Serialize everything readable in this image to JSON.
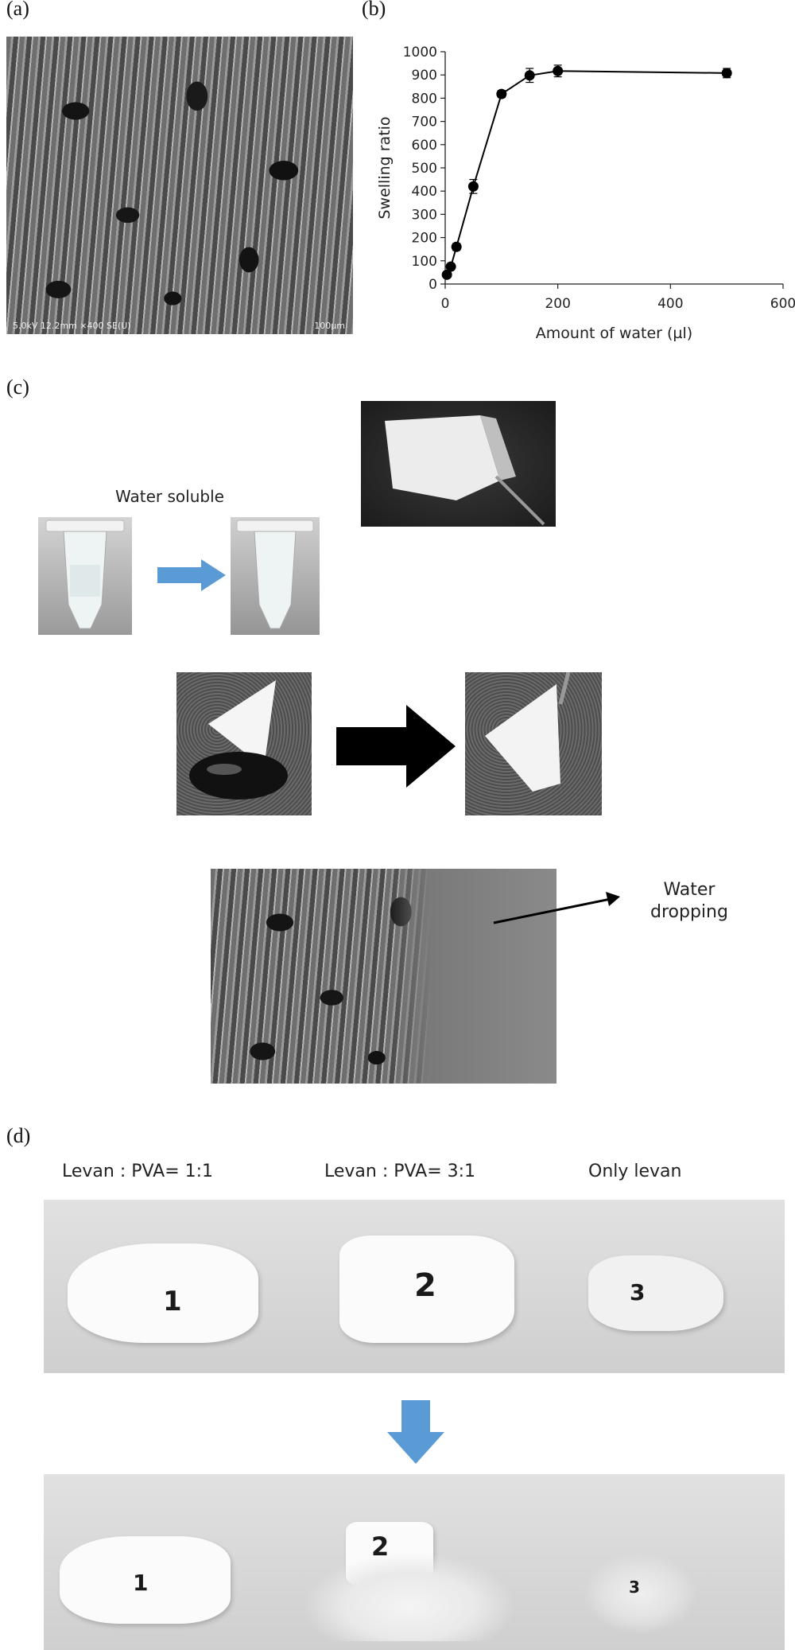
{
  "panels": {
    "a": {
      "label": "(a)",
      "sem_caption": "5.0kV 12.2mm ×400 SE(U)",
      "sem_scale": "100µm"
    },
    "b": {
      "label": "(b)"
    },
    "c": {
      "label": "(c)",
      "water_soluble_caption": "Water soluble",
      "water_dropping_caption": "Water\ndropping"
    },
    "d": {
      "label": "(d)",
      "sample_headers": [
        "Levan : PVA=  1:1",
        "Levan : PVA=  3:1",
        "Only levan"
      ],
      "sample_numbers": [
        "1",
        "2",
        "3"
      ]
    }
  },
  "colors": {
    "arrow_blue": "#5b9bd5",
    "arrow_black": "#000000"
  },
  "chart_data": {
    "type": "line",
    "title": "",
    "xlabel": "Amount of water (µl)",
    "ylabel": "Swelling ratio",
    "xlim": [
      0,
      600
    ],
    "ylim": [
      0,
      1000
    ],
    "xticks": [
      0,
      200,
      400,
      600
    ],
    "yticks": [
      0,
      100,
      200,
      300,
      400,
      500,
      600,
      700,
      800,
      900,
      1000
    ],
    "grid": false,
    "series": [
      {
        "x": [
          3,
          10,
          20,
          50,
          100,
          150,
          200,
          500
        ],
        "y": [
          40,
          75,
          160,
          420,
          818,
          898,
          917,
          908
        ],
        "yerr": [
          8,
          10,
          15,
          30,
          15,
          30,
          25,
          20
        ]
      }
    ]
  }
}
